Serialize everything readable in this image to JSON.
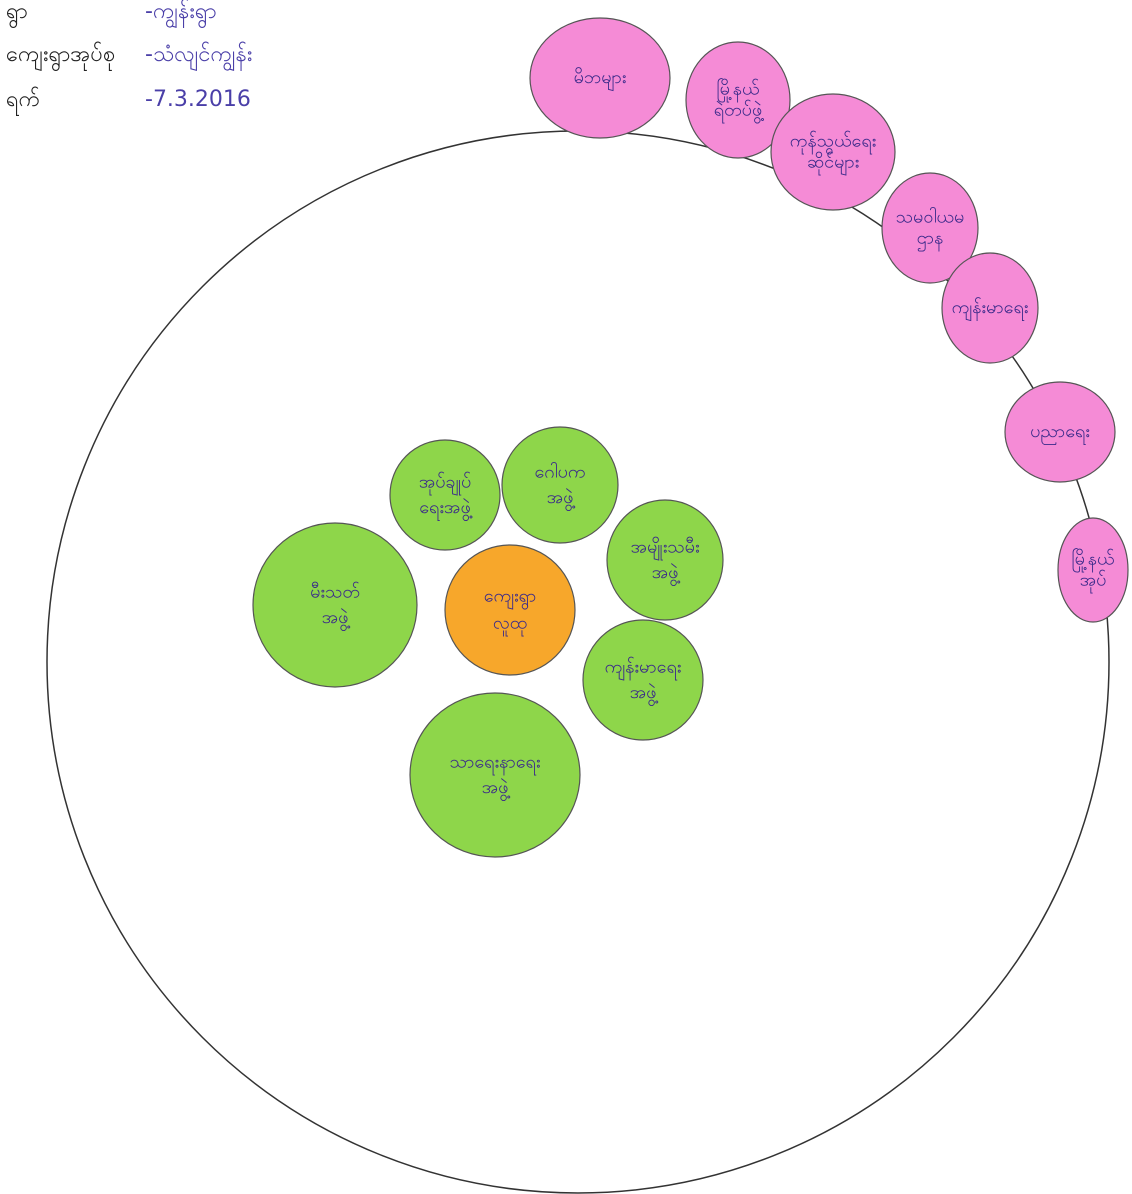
{
  "header": {
    "rows": [
      {
        "label": "ရွာ",
        "value": "-ကျွန်းရွာ"
      },
      {
        "label": "ကျေးရွာအုပ်စု",
        "value": "-သံလျင်ကျွန်း"
      },
      {
        "label": "ရက်",
        "value": "-7.3.2016"
      }
    ]
  },
  "center": {
    "lines": [
      "ကျေးရွာ",
      "လူထု"
    ]
  },
  "inner": [
    {
      "lines": [
        "အုပ်ချုပ်",
        "ရေးအဖွဲ့"
      ]
    },
    {
      "lines": [
        "ဂေါပက",
        "အဖွဲ့"
      ]
    },
    {
      "lines": [
        "အမျိုးသမီး",
        "အဖွဲ့"
      ]
    },
    {
      "lines": [
        "မီးသတ်",
        "အဖွဲ့"
      ]
    },
    {
      "lines": [
        "ကျန်းမာရေး",
        "အဖွဲ့"
      ]
    },
    {
      "lines": [
        "သာရေးနာရေး",
        "အဖွဲ့"
      ]
    }
  ],
  "outer": [
    {
      "lines": [
        "မိဘများ"
      ]
    },
    {
      "lines": [
        "မြို့နယ်",
        "ရဲတပ်ဖွဲ့"
      ]
    },
    {
      "lines": [
        "ကုန်သွယ်ရေး",
        "ဆိုင်များ"
      ]
    },
    {
      "lines": [
        "သမဝါယမ",
        "ဌာန"
      ]
    },
    {
      "lines": [
        "ကျန်းမာရေး"
      ]
    },
    {
      "lines": [
        "ပညာရေး"
      ]
    },
    {
      "lines": [
        "မြို့နယ်",
        "အုပ်"
      ]
    }
  ]
}
